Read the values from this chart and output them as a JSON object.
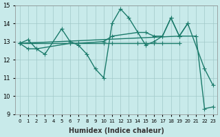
{
  "xlabel": "Humidex (Indice chaleur)",
  "xlim": [
    -0.5,
    23.5
  ],
  "ylim": [
    9,
    15
  ],
  "yticks": [
    9,
    10,
    11,
    12,
    13,
    14,
    15
  ],
  "background_color": "#c8eaea",
  "grid_color": "#a0c8c8",
  "line_color": "#1a7a6a",
  "marker": "+",
  "marker_size": 5,
  "line_width": 1.0,
  "series": {
    "s1_x": [
      0,
      1,
      2,
      3,
      5,
      6,
      7,
      8,
      9,
      10,
      11,
      12,
      13,
      15,
      16,
      17,
      18,
      19,
      20,
      22,
      23
    ],
    "s1_y": [
      12.9,
      13.1,
      12.6,
      12.3,
      13.7,
      13.0,
      12.8,
      12.3,
      11.5,
      11.0,
      14.0,
      14.8,
      14.3,
      12.8,
      13.0,
      13.3,
      14.3,
      13.3,
      14.0,
      11.5,
      10.6
    ],
    "s2_x": [
      0,
      1,
      2,
      6,
      7,
      10,
      11,
      14,
      15,
      16,
      17,
      18,
      19,
      20
    ],
    "s2_y": [
      12.9,
      12.6,
      12.6,
      12.9,
      12.9,
      13.0,
      13.3,
      13.5,
      13.5,
      13.3,
      13.3,
      14.3,
      13.3,
      14.0
    ],
    "s3_x": [
      0,
      6,
      7,
      10,
      11,
      14,
      15,
      16,
      17,
      19
    ],
    "s3_y": [
      12.9,
      12.9,
      12.9,
      12.9,
      12.9,
      12.9,
      12.9,
      12.9,
      12.9,
      12.9
    ],
    "s4_x": [
      0,
      19,
      21,
      22,
      23
    ],
    "s4_y": [
      12.9,
      13.3,
      13.3,
      9.3,
      9.4
    ]
  }
}
